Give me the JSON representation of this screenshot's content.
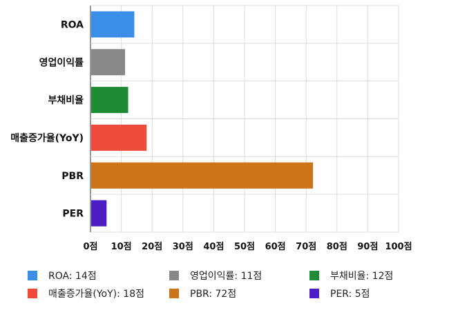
{
  "chart_data": {
    "type": "bar",
    "orientation": "horizontal",
    "categories": [
      "ROA",
      "영업이익률",
      "부채비율",
      "매출증가율(YoY)",
      "PBR",
      "PER"
    ],
    "values": [
      14,
      11,
      12,
      18,
      72,
      5
    ],
    "colors": [
      "#3a8ee6",
      "#888888",
      "#1e8c34",
      "#ee4b3b",
      "#cc7419",
      "#4d1ec4"
    ],
    "xlim": [
      0,
      100
    ],
    "xticks": [
      0,
      10,
      20,
      30,
      40,
      50,
      60,
      70,
      80,
      90,
      100
    ],
    "tick_suffix": "점",
    "grid": true,
    "legend_position": "bottom",
    "legend": [
      {
        "label": "ROA: 14점",
        "color": "#3a8ee6"
      },
      {
        "label": "영업이익률: 11점",
        "color": "#888888"
      },
      {
        "label": "부채비율: 12점",
        "color": "#1e8c34"
      },
      {
        "label": "매출증가율(YoY): 18점",
        "color": "#ee4b3b"
      },
      {
        "label": "PBR: 72점",
        "color": "#cc7419"
      },
      {
        "label": "PER: 5점",
        "color": "#4d1ec4"
      }
    ]
  }
}
